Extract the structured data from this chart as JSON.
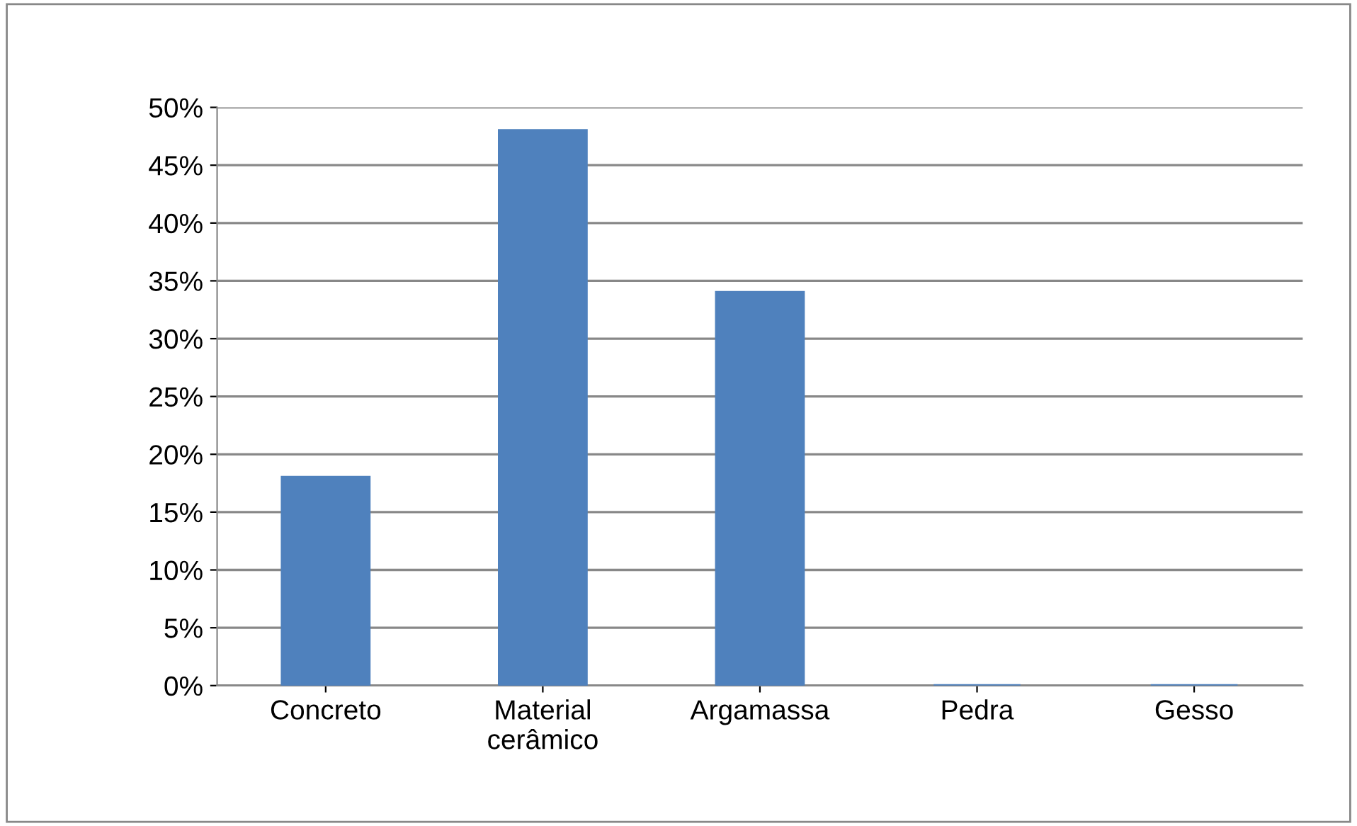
{
  "chart_data": {
    "type": "bar",
    "categories": [
      "Concreto",
      "Material\ncerâmico",
      "Argamassa",
      "Pedra",
      "Gesso"
    ],
    "values": [
      18,
      48,
      34,
      0,
      0
    ],
    "color": "#4f81bd",
    "ylim": [
      0,
      50
    ],
    "yticks": [
      {
        "value": 0,
        "label": "0%"
      },
      {
        "value": 5,
        "label": "5%"
      },
      {
        "value": 10,
        "label": "10%"
      },
      {
        "value": 15,
        "label": "15%"
      },
      {
        "value": 20,
        "label": "20%"
      },
      {
        "value": 25,
        "label": "25%"
      },
      {
        "value": 30,
        "label": "30%"
      },
      {
        "value": 35,
        "label": "35%"
      },
      {
        "value": 40,
        "label": "40%"
      },
      {
        "value": 45,
        "label": "45%"
      },
      {
        "value": 50,
        "label": "50%"
      }
    ],
    "grid": "y",
    "legend": false
  }
}
